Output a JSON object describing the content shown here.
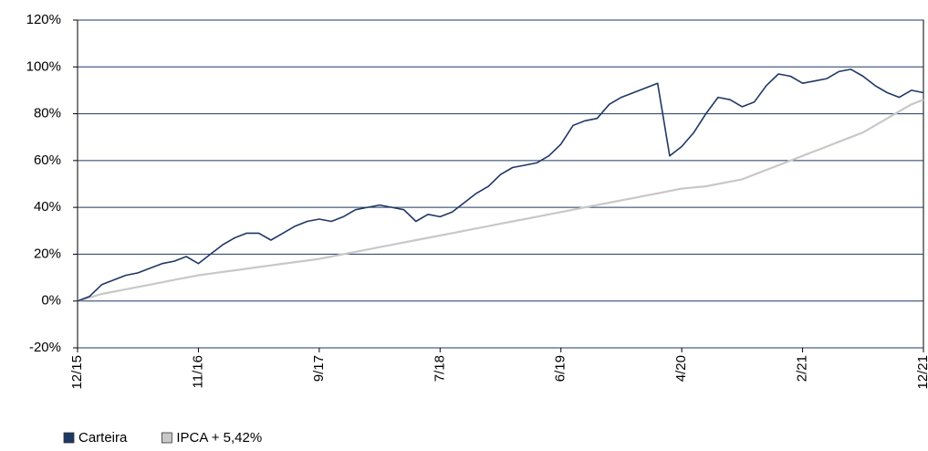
{
  "chart_data": {
    "type": "line",
    "categories": [
      "12/15",
      null,
      null,
      null,
      null,
      null,
      null,
      null,
      null,
      null,
      "11/16",
      null,
      null,
      null,
      null,
      null,
      null,
      null,
      null,
      null,
      "9/17",
      null,
      null,
      null,
      null,
      null,
      null,
      null,
      null,
      null,
      "7/18",
      null,
      null,
      null,
      null,
      null,
      null,
      null,
      null,
      null,
      "6/19",
      null,
      null,
      null,
      null,
      null,
      null,
      null,
      null,
      null,
      "4/20",
      null,
      null,
      null,
      null,
      null,
      null,
      null,
      null,
      null,
      "2/21",
      null,
      null,
      null,
      null,
      null,
      null,
      null,
      null,
      null,
      "12/21"
    ],
    "series": [
      {
        "name": "Carteira",
        "color": "#1f3864",
        "values": [
          0,
          2,
          7,
          9,
          11,
          12,
          14,
          16,
          17,
          19,
          16,
          20,
          24,
          27,
          29,
          29,
          26,
          29,
          32,
          34,
          35,
          34,
          36,
          39,
          40,
          41,
          40,
          39,
          34,
          37,
          36,
          38,
          42,
          46,
          49,
          54,
          57,
          58,
          59,
          62,
          67,
          75,
          77,
          78,
          84,
          87,
          89,
          91,
          93,
          62,
          66,
          72,
          80,
          87,
          86,
          83,
          85,
          92,
          97,
          96,
          93,
          94,
          95,
          98,
          99,
          96,
          92,
          89,
          87,
          90,
          89
        ]
      },
      {
        "name": "IPCA + 5,42%",
        "color": "#c8c8c8",
        "values": [
          0,
          1.5,
          3,
          4,
          5,
          6,
          7,
          8,
          9,
          10,
          11,
          11.7,
          12.4,
          13.1,
          13.8,
          14.5,
          15.2,
          15.9,
          16.6,
          17.3,
          18,
          19,
          20,
          21,
          22,
          23,
          24,
          25,
          26,
          27,
          28,
          29,
          30,
          31,
          32,
          33,
          34,
          35,
          36,
          37,
          38,
          39,
          40,
          41,
          42,
          43,
          44,
          45,
          46,
          47,
          48,
          48.5,
          49,
          50,
          51,
          52,
          54,
          56,
          58,
          60,
          62,
          64,
          66,
          68,
          70,
          72,
          75,
          78,
          81,
          84,
          86
        ]
      }
    ],
    "ylim": [
      -20,
      120
    ],
    "yticks": [
      {
        "value": -20,
        "label": "-20%"
      },
      {
        "value": 0,
        "label": "0%"
      },
      {
        "value": 20,
        "label": "20%"
      },
      {
        "value": 40,
        "label": "40%"
      },
      {
        "value": 60,
        "label": "60%"
      },
      {
        "value": 80,
        "label": "80%"
      },
      {
        "value": 100,
        "label": "100%"
      },
      {
        "value": 120,
        "label": "120%"
      }
    ],
    "grid": true
  }
}
